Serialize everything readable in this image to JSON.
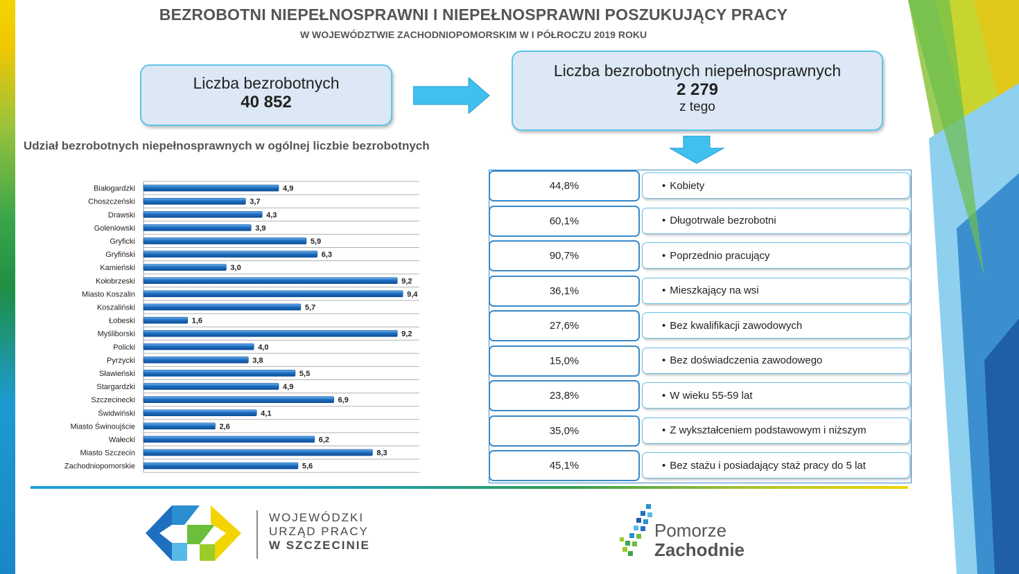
{
  "header": {
    "title": "BEZROBOTNI NIEPEŁNOSPRAWNI I NIEPEŁNOSPRAWNI POSZUKUJĄCY PRACY",
    "subtitle": "W WOJEWÓDZTWIE ZACHODNIOPOMORSKIM W I PÓŁROCZU 2019 ROKU"
  },
  "box_total": {
    "label": "Liczba bezrobotnych",
    "value": "40 852"
  },
  "box_disabled": {
    "label": "Liczba bezrobotnych niepełnosprawnych",
    "value": "2 279",
    "note": "z tego"
  },
  "chart_title": "Udział bezrobotnych niepełnosprawnych w ogólnej liczbie bezrobotnych",
  "chart_data": {
    "type": "bar",
    "orientation": "horizontal",
    "title": "Udział bezrobotnych niepełnosprawnych w ogólnej liczbie bezrobotnych",
    "categories": [
      "Białogardzki",
      "Choszczeński",
      "Drawski",
      "Goleniowski",
      "Gryficki",
      "Gryfiński",
      "Kamieński",
      "Kołobrzeski",
      "Miasto Koszalin",
      "Koszaliński",
      "Łobeski",
      "Myśliborski",
      "Policki",
      "Pyrzycki",
      "Sławieński",
      "Stargardzki",
      "Szczecinecki",
      "Świdwiński",
      "Miasto Świnoujście",
      "Wałecki",
      "Miasto Szczecin",
      "Zachodniopomorskie"
    ],
    "values": [
      4.9,
      3.7,
      4.3,
      3.9,
      5.9,
      6.3,
      3.0,
      9.2,
      9.4,
      5.7,
      1.6,
      9.2,
      4.0,
      3.8,
      5.5,
      4.9,
      6.9,
      4.1,
      2.6,
      6.2,
      8.3,
      5.6
    ],
    "value_labels": [
      "4,9",
      "3,7",
      "4,3",
      "3,9",
      "5,9",
      "6,3",
      "3,0",
      "9,2",
      "9,4",
      "5,7",
      "1,6",
      "9,2",
      "4,0",
      "3,8",
      "5,5",
      "4,9",
      "6,9",
      "4,1",
      "2,6",
      "6,2",
      "8,3",
      "5,6"
    ],
    "xlim": [
      0,
      10
    ],
    "grid": true,
    "bar_color": "#1f6fc0"
  },
  "breakdown": [
    {
      "pct": "44,8%",
      "label": "Kobiety"
    },
    {
      "pct": "60,1%",
      "label": "Długotrwale bezrobotni"
    },
    {
      "pct": "90,7%",
      "label": "Poprzednio pracujący"
    },
    {
      "pct": "36,1%",
      "label": "Mieszkający na wsi"
    },
    {
      "pct": "27,6%",
      "label": "Bez kwalifikacji zawodowych"
    },
    {
      "pct": "15,0%",
      "label": "Bez doświadczenia zawodowego"
    },
    {
      "pct": "23,8%",
      "label": "W wieku 55-59 lat"
    },
    {
      "pct": "35,0%",
      "label": "Z wykształceniem podstawowym i niższym"
    },
    {
      "pct": "45,1%",
      "label": "Bez stażu i posiadający staż pracy do 5 lat"
    }
  ],
  "bullet": "•",
  "logo_wup": {
    "line1": "WOJEWÓDZKI",
    "line2": "URZĄD PRACY",
    "line3": "W  SZCZECINIE"
  },
  "logo_pz": {
    "line1": "Pomorze",
    "line2": "Zachodnie"
  }
}
